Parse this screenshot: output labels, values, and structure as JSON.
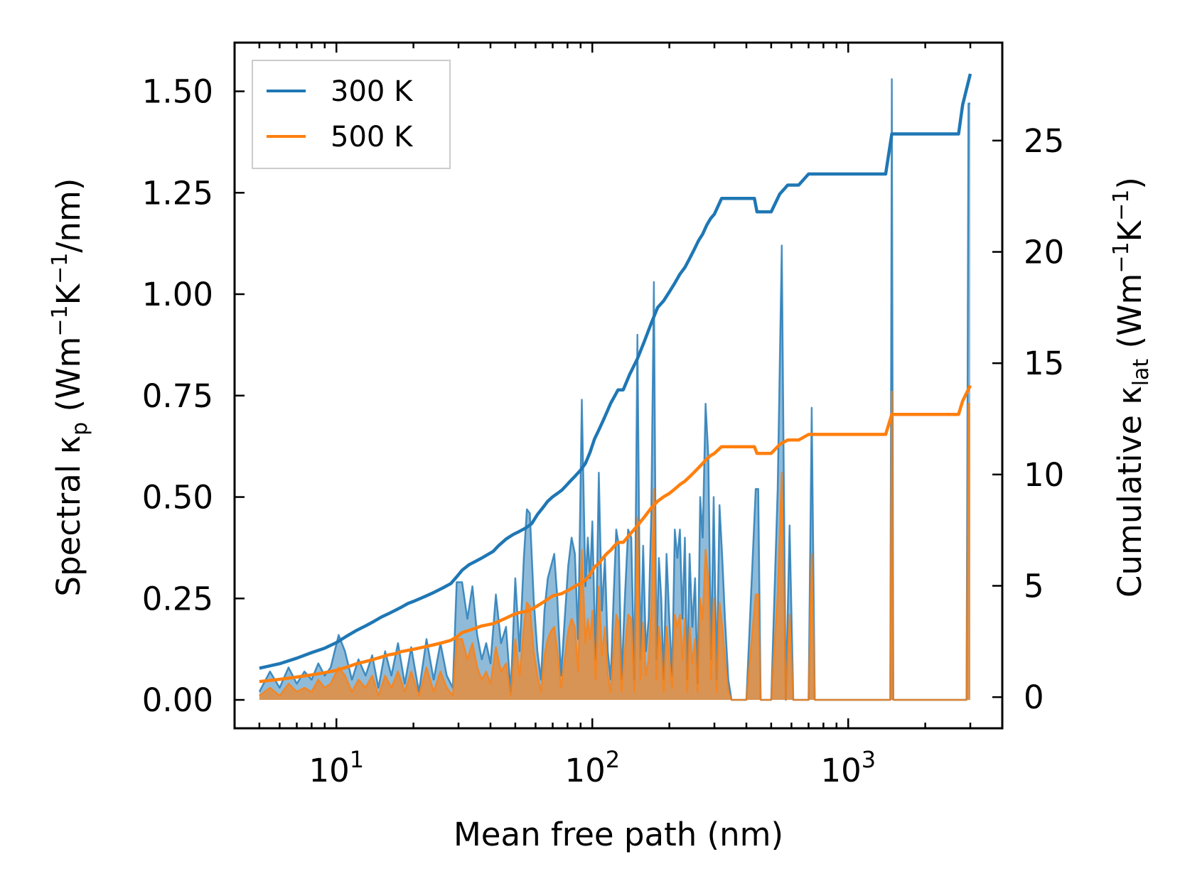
{
  "chart_data": {
    "type": "line",
    "title": "",
    "xlabel": "Mean free path (nm)",
    "ylabel_left": {
      "main": "Spectral κ",
      "sub": "p",
      "unit_pre": " (Wm",
      "exp1": "−1",
      "mid": "K",
      "exp2": "−1",
      "unit_post": "/nm)"
    },
    "ylabel_right": {
      "main": "Cumulative κ",
      "sub": "lat",
      "unit_pre": " (Wm",
      "exp1": "−1",
      "mid": "K",
      "exp2": "−1",
      "unit_post": ")"
    },
    "x_scale": "log",
    "xlim": [
      4.0,
      4000
    ],
    "ylim_left": [
      -0.07,
      1.62
    ],
    "ylim_right": [
      -1.4,
      29.4
    ],
    "x_ticks": [
      {
        "value": 10,
        "base": "10",
        "exp": "1"
      },
      {
        "value": 100,
        "base": "10",
        "exp": "2"
      },
      {
        "value": 1000,
        "base": "10",
        "exp": "3"
      }
    ],
    "y_left_ticks": [
      "0.00",
      "0.25",
      "0.50",
      "0.75",
      "1.00",
      "1.25",
      "1.50"
    ],
    "y_right_ticks": [
      "0",
      "5",
      "10",
      "15",
      "20",
      "25"
    ],
    "legend": {
      "location": "top-left",
      "entries": [
        {
          "label": "300 K",
          "color": "#1f77b4"
        },
        {
          "label": "500 K",
          "color": "#ff7f0e"
        }
      ]
    },
    "series": [
      {
        "name": "300 K",
        "color": "#1f77b4",
        "spectral": {
          "x": [
            5.0,
            5.5,
            6,
            6.5,
            7,
            7.5,
            8,
            8.5,
            9,
            9.5,
            10.2,
            10.8,
            11.5,
            12.2,
            13,
            13.8,
            14.6,
            15.5,
            16.4,
            17.4,
            18.5,
            19.6,
            21,
            22.5,
            24,
            25.5,
            27,
            28.5,
            29.5,
            31,
            32.5,
            34,
            35.5,
            37,
            38.5,
            40,
            42,
            44,
            46,
            48,
            50,
            52,
            54,
            55.5,
            57,
            59,
            61,
            63,
            65,
            67,
            69,
            71,
            73,
            75.5,
            78,
            80.5,
            83,
            85.5,
            88,
            91,
            94,
            96,
            98,
            100,
            103,
            106,
            109,
            112,
            115,
            118,
            121,
            124,
            127,
            130,
            134,
            138,
            142,
            146,
            150,
            154,
            158,
            162,
            166,
            170,
            174,
            178,
            182,
            186,
            190,
            195,
            200,
            205,
            210,
            215,
            220,
            225,
            230,
            235,
            240,
            246,
            252,
            258,
            264,
            270,
            277,
            284,
            291,
            298,
            306,
            314,
            322,
            330,
            340,
            350,
            400,
            435,
            445,
            455,
            500,
            530,
            550,
            570,
            590,
            610,
            630,
            660,
            700,
            720,
            740,
            1400,
            1460,
            1480,
            1500,
            2800,
            2900,
            2950,
            3000
          ],
          "y": [
            0.02,
            0.07,
            0.03,
            0.08,
            0.04,
            0.07,
            0.05,
            0.09,
            0.06,
            0.08,
            0.16,
            0.12,
            0.05,
            0.1,
            0.06,
            0.11,
            0.03,
            0.12,
            0.06,
            0.14,
            0.04,
            0.13,
            0.02,
            0.15,
            0.05,
            0.14,
            0.06,
            0.03,
            0.29,
            0.29,
            0.2,
            0.28,
            0.16,
            0.1,
            0.14,
            0.09,
            0.26,
            0.14,
            0.18,
            0.02,
            0.3,
            0.12,
            0.35,
            0.47,
            0.46,
            0.25,
            0.12,
            0.05,
            0.22,
            0.3,
            0.33,
            0.36,
            0.25,
            0.06,
            0.2,
            0.33,
            0.4,
            0.36,
            0.15,
            0.74,
            0.28,
            0.4,
            0.3,
            0.44,
            0.1,
            0.56,
            0.22,
            0.35,
            0.12,
            0.05,
            0.25,
            0.42,
            0.38,
            0.05,
            0.25,
            0.42,
            0.4,
            0.05,
            0.9,
            0.1,
            0.38,
            0.12,
            0.2,
            0.46,
            1.03,
            0.1,
            0.35,
            0.25,
            0.05,
            0.36,
            0.2,
            0.06,
            0.42,
            0.35,
            0.42,
            0.2,
            0.4,
            0.05,
            0.36,
            0.18,
            0.3,
            0.04,
            0.5,
            0.4,
            0.73,
            0.6,
            0.1,
            0.5,
            0.05,
            0.48,
            0.35,
            0.2,
            0.05,
            0.0,
            0.0,
            0.52,
            0.52,
            0.0,
            0.0,
            0.52,
            1.12,
            0.0,
            0.43,
            0.0,
            0.0,
            0.0,
            0.0,
            0.72,
            0.0,
            0.0,
            0.0,
            1.53,
            0.0,
            0.0,
            0.0,
            1.47,
            1.47
          ]
        },
        "cumulative": {
          "x": [
            5.0,
            6,
            7,
            8,
            9,
            10,
            11,
            12,
            13,
            14,
            15,
            16,
            17,
            18,
            19,
            20,
            22,
            24,
            26,
            28,
            29.5,
            31,
            33,
            35,
            37,
            39,
            41,
            43,
            46,
            49,
            52,
            55,
            58,
            61,
            64,
            67,
            70,
            73,
            76,
            79,
            82,
            86,
            90,
            94,
            98,
            102,
            106,
            110,
            114,
            118,
            122,
            126,
            132,
            140,
            150,
            160,
            170,
            180,
            190,
            200,
            210,
            220,
            230,
            240,
            250,
            260,
            270,
            280,
            290,
            300,
            320,
            340,
            400,
            430,
            440,
            450,
            500,
            540,
            560,
            580,
            600,
            640,
            700,
            750,
            1400,
            1480,
            1500,
            2700,
            2800,
            3000
          ],
          "y": [
            1.3,
            1.5,
            1.75,
            2.0,
            2.2,
            2.45,
            2.75,
            3.0,
            3.2,
            3.4,
            3.6,
            3.75,
            3.9,
            4.05,
            4.2,
            4.3,
            4.5,
            4.7,
            4.9,
            5.1,
            5.4,
            5.7,
            5.95,
            6.1,
            6.25,
            6.4,
            6.55,
            6.8,
            7.1,
            7.3,
            7.45,
            7.6,
            7.8,
            8.2,
            8.5,
            8.8,
            9.0,
            9.15,
            9.3,
            9.5,
            9.7,
            9.95,
            10.2,
            10.5,
            11.0,
            11.6,
            12.0,
            12.4,
            12.8,
            13.2,
            13.5,
            13.8,
            13.8,
            14.5,
            15.2,
            16.0,
            16.8,
            17.5,
            17.8,
            18.2,
            18.6,
            19.0,
            19.3,
            19.7,
            20.1,
            20.5,
            20.8,
            21.2,
            21.5,
            21.7,
            22.4,
            22.4,
            22.4,
            22.4,
            21.8,
            21.8,
            21.8,
            22.6,
            22.8,
            23.0,
            23.0,
            23.0,
            23.5,
            23.5,
            23.5,
            25.3,
            25.3,
            25.3,
            26.6,
            28.0
          ]
        }
      },
      {
        "name": "500 K",
        "color": "#ff7f0e",
        "spectral": {
          "x": [
            5.0,
            5.5,
            6,
            6.5,
            7,
            7.5,
            8,
            8.5,
            9,
            9.5,
            10.2,
            10.8,
            11.5,
            12.2,
            13,
            13.8,
            14.6,
            15.5,
            16.4,
            17.4,
            18.5,
            19.6,
            21,
            22.5,
            24,
            25.5,
            27,
            28.5,
            29.5,
            31,
            32.5,
            34,
            35.5,
            37,
            38.5,
            40,
            42,
            44,
            46,
            48,
            50,
            52,
            54,
            55.5,
            57,
            59,
            61,
            63,
            65,
            67,
            69,
            71,
            73,
            75.5,
            78,
            80.5,
            83,
            85.5,
            88,
            91,
            94,
            96,
            98,
            100,
            103,
            106,
            109,
            112,
            115,
            118,
            121,
            124,
            127,
            130,
            134,
            138,
            142,
            146,
            150,
            154,
            158,
            162,
            166,
            170,
            174,
            178,
            182,
            186,
            190,
            195,
            200,
            205,
            210,
            215,
            220,
            225,
            230,
            235,
            240,
            246,
            252,
            258,
            264,
            270,
            277,
            284,
            291,
            298,
            306,
            314,
            322,
            330,
            340,
            350,
            400,
            435,
            445,
            455,
            500,
            530,
            550,
            570,
            590,
            610,
            630,
            660,
            700,
            720,
            740,
            1400,
            1460,
            1480,
            1500,
            2800,
            2900,
            2950,
            3000
          ],
          "y": [
            0.01,
            0.03,
            0.01,
            0.04,
            0.02,
            0.03,
            0.02,
            0.05,
            0.03,
            0.04,
            0.08,
            0.06,
            0.02,
            0.05,
            0.03,
            0.06,
            0.01,
            0.06,
            0.03,
            0.07,
            0.02,
            0.07,
            0.01,
            0.08,
            0.02,
            0.07,
            0.03,
            0.01,
            0.15,
            0.15,
            0.1,
            0.14,
            0.08,
            0.05,
            0.07,
            0.04,
            0.13,
            0.07,
            0.09,
            0.01,
            0.15,
            0.06,
            0.18,
            0.24,
            0.23,
            0.12,
            0.06,
            0.02,
            0.11,
            0.15,
            0.17,
            0.18,
            0.12,
            0.03,
            0.1,
            0.17,
            0.2,
            0.18,
            0.07,
            0.37,
            0.14,
            0.2,
            0.15,
            0.22,
            0.05,
            0.28,
            0.11,
            0.18,
            0.06,
            0.02,
            0.12,
            0.21,
            0.19,
            0.02,
            0.12,
            0.21,
            0.2,
            0.02,
            0.45,
            0.05,
            0.19,
            0.06,
            0.1,
            0.23,
            0.52,
            0.05,
            0.18,
            0.12,
            0.02,
            0.18,
            0.1,
            0.03,
            0.21,
            0.18,
            0.21,
            0.1,
            0.2,
            0.02,
            0.18,
            0.09,
            0.15,
            0.02,
            0.25,
            0.2,
            0.37,
            0.3,
            0.05,
            0.25,
            0.02,
            0.24,
            0.18,
            0.1,
            0.02,
            0.0,
            0.0,
            0.26,
            0.26,
            0.0,
            0.0,
            0.26,
            0.56,
            0.0,
            0.21,
            0.0,
            0.0,
            0.0,
            0.0,
            0.36,
            0.0,
            0.0,
            0.0,
            0.76,
            0.0,
            0.0,
            0.0,
            0.73,
            0.73
          ]
        },
        "cumulative": {
          "x": [
            5.0,
            6,
            7,
            8,
            9,
            10,
            11,
            12,
            13,
            14,
            15,
            16,
            17,
            18,
            19,
            20,
            22,
            24,
            26,
            28,
            29.5,
            31,
            33,
            35,
            37,
            39,
            41,
            43,
            46,
            49,
            52,
            55,
            58,
            61,
            64,
            67,
            70,
            73,
            76,
            79,
            82,
            86,
            90,
            94,
            98,
            102,
            106,
            110,
            114,
            118,
            122,
            126,
            132,
            140,
            150,
            160,
            170,
            180,
            190,
            200,
            210,
            220,
            230,
            240,
            250,
            260,
            270,
            280,
            290,
            300,
            320,
            340,
            400,
            430,
            440,
            450,
            500,
            540,
            560,
            580,
            600,
            640,
            700,
            750,
            1400,
            1480,
            1500,
            2700,
            2800,
            3000
          ],
          "y": [
            0.7,
            0.8,
            0.9,
            1.0,
            1.1,
            1.2,
            1.35,
            1.5,
            1.6,
            1.7,
            1.8,
            1.9,
            1.95,
            2.05,
            2.1,
            2.15,
            2.25,
            2.35,
            2.45,
            2.55,
            2.7,
            2.9,
            3.0,
            3.1,
            3.2,
            3.25,
            3.3,
            3.4,
            3.55,
            3.7,
            3.8,
            3.85,
            3.95,
            4.1,
            4.25,
            4.4,
            4.55,
            4.6,
            4.65,
            4.75,
            4.85,
            5.0,
            5.1,
            5.25,
            5.5,
            5.85,
            6.0,
            6.25,
            6.45,
            6.6,
            6.8,
            6.95,
            6.95,
            7.3,
            7.7,
            8.1,
            8.5,
            8.8,
            9.0,
            9.15,
            9.35,
            9.55,
            9.7,
            9.9,
            10.1,
            10.3,
            10.5,
            10.7,
            10.85,
            10.95,
            11.25,
            11.25,
            11.25,
            11.25,
            10.95,
            10.95,
            10.95,
            11.35,
            11.45,
            11.55,
            11.55,
            11.55,
            11.8,
            11.8,
            11.8,
            12.7,
            12.7,
            12.7,
            13.3,
            14.0
          ]
        }
      }
    ]
  }
}
